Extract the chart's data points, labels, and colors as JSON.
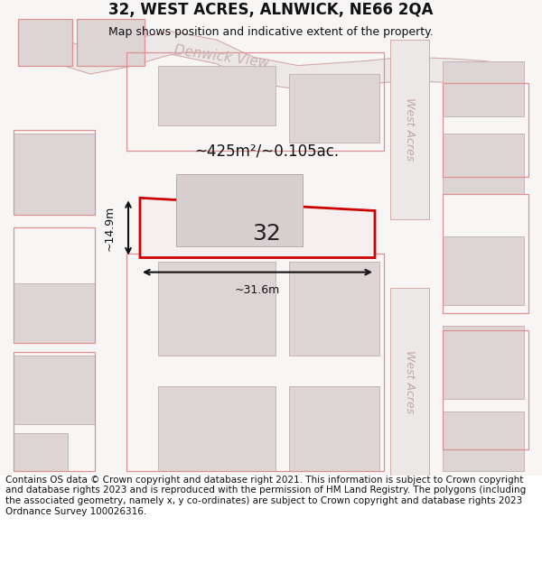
{
  "title": "32, WEST ACRES, ALNWICK, NE66 2QA",
  "subtitle": "Map shows position and indicative extent of the property.",
  "footer": "Contains OS data © Crown copyright and database right 2021. This information is subject to Crown copyright and database rights 2023 and is reproduced with the permission of HM Land Registry. The polygons (including the associated geometry, namely x, y co-ordinates) are subject to Crown copyright and database rights 2023 Ordnance Survey 100026316.",
  "area_label": "~425m²/~0.105ac.",
  "number_label": "32",
  "width_label": "~31.6m",
  "height_label": "~14.9m",
  "bg_color": "#f5f0f0",
  "map_bg": "#f8f5f5",
  "road_color": "#e8c8c8",
  "road_fill": "#f0e8e8",
  "block_fill": "#e0dada",
  "block_stroke": "#c8b8b8",
  "highlight_fill": "#f0e8e8",
  "highlight_stroke": "#cc0000",
  "road_label_color": "#aaaaaa",
  "street_label_color": "#aaaaaa",
  "dim_color": "#111111",
  "title_fontsize": 12,
  "subtitle_fontsize": 9,
  "footer_fontsize": 7.5
}
